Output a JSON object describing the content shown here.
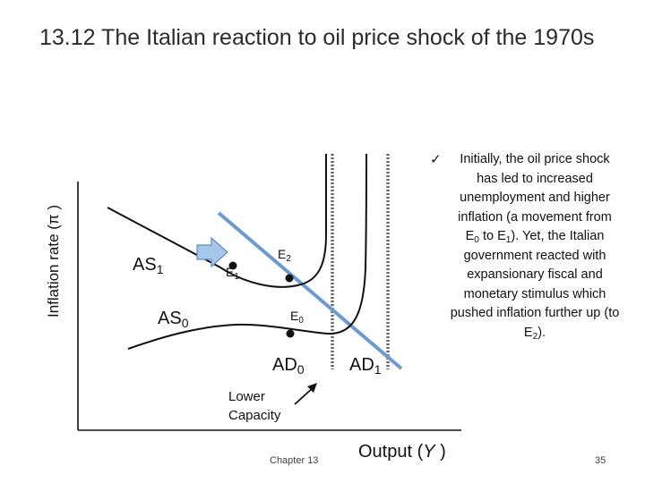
{
  "title": "13.12 The Italian reaction to oil price shock of the 1970s",
  "y_axis_label": "Inflation rate (π )",
  "x_axis_label_text": "Output (",
  "x_axis_symbol": "Y",
  "x_axis_close": " )",
  "curves": {
    "as1": {
      "base": "AS",
      "sub": "1"
    },
    "as0": {
      "base": "AS",
      "sub": "0"
    },
    "ad0": {
      "base": "AD",
      "sub": "0"
    },
    "ad1": {
      "base": "AD",
      "sub": "1"
    }
  },
  "points": {
    "e1": {
      "base": "E",
      "sub": "1"
    },
    "e2": {
      "base": "E",
      "sub": "2"
    },
    "e0": {
      "base": "E",
      "sub": "0"
    }
  },
  "lower_capacity": [
    "Lower",
    "Capacity"
  ],
  "note": {
    "check": "✓",
    "parts": [
      "Initially, the oil price shock has led to increased unemployment and higher inflation (a movement from E",
      "0",
      " to E",
      "1",
      "). Yet, the Italian government reacted with expansionary fiscal and monetary stimulus which pushed inflation further up (to E",
      "2",
      ")."
    ]
  },
  "footer": {
    "center": "Chapter 13",
    "page": "35"
  },
  "colors": {
    "ad_line": "#6b9bd1",
    "arrow_fill": "#a7c7ea",
    "arrow_stroke": "#5b8cc6",
    "curve": "#111111",
    "capacity_line": "#666666"
  }
}
